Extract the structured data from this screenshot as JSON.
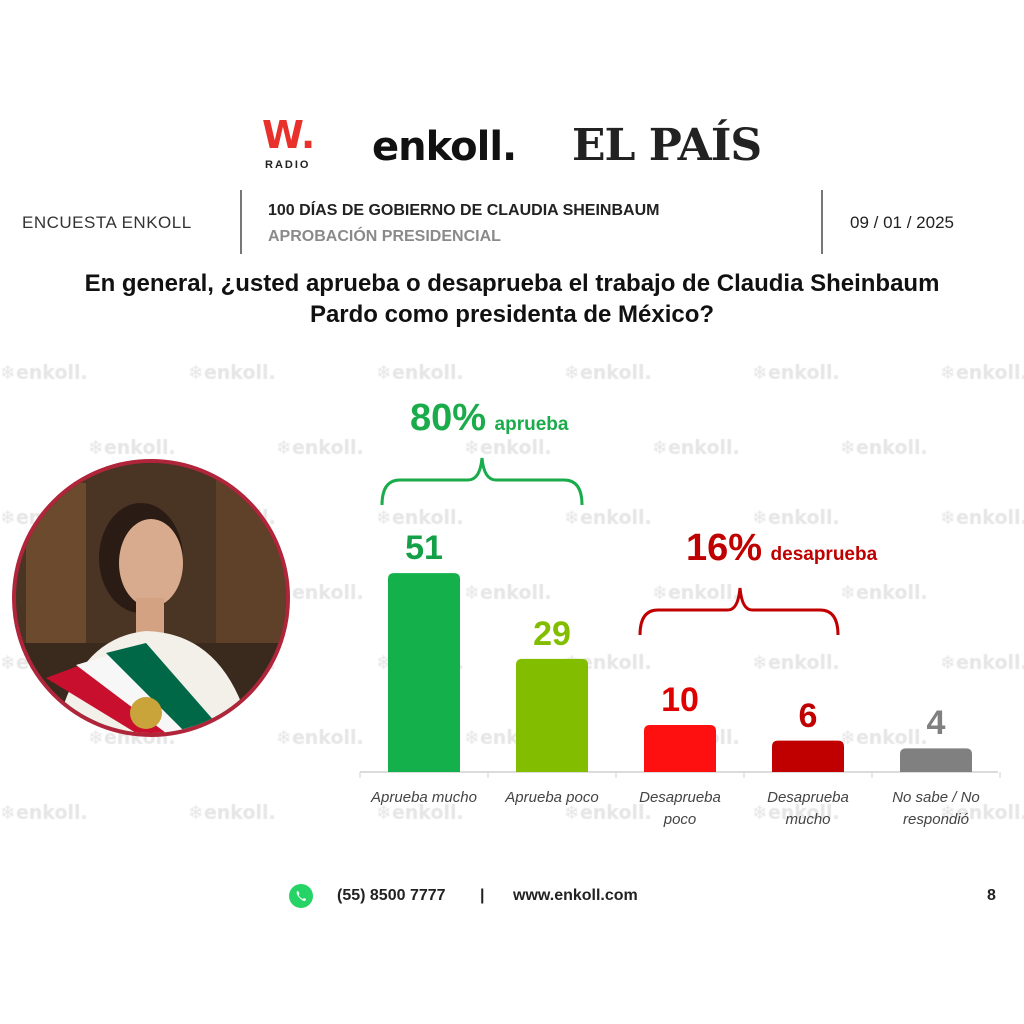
{
  "logos": {
    "wradio_main": "W.",
    "wradio_sub": "RADIO",
    "enkoll": "enkoll.",
    "elpais": "EL PAÍS",
    "watermark": "enkoll."
  },
  "header": {
    "left": "ENCUESTA ENKOLL",
    "title": "100 DÍAS DE GOBIERNO DE CLAUDIA SHEINBAUM",
    "subtitle": "APROBACIÓN PRESIDENCIAL",
    "date": "09 / 01 / 2025"
  },
  "question_line1": "En general, ¿usted aprueba o desaprueba el trabajo de Claudia Sheinbaum",
  "question_line2": "Pardo como presidenta de México?",
  "summaries": {
    "approve": {
      "value": "80%",
      "label": "aprueba",
      "color": "#1aab4b"
    },
    "disapprove": {
      "value": "16%",
      "label": "desaprueba",
      "color": "#c00000"
    }
  },
  "chart_data": {
    "type": "bar",
    "title": "",
    "categories": [
      "Aprueba mucho",
      "Aprueba poco",
      "Desaprueba poco",
      "Desaprueba mucho",
      "No sabe / No respondió"
    ],
    "category_lines": [
      [
        "Aprueba mucho"
      ],
      [
        "Aprueba poco"
      ],
      [
        "Desaprueba",
        "poco"
      ],
      [
        "Desaprueba",
        "mucho"
      ],
      [
        "No sabe / No",
        "respondió"
      ]
    ],
    "values": [
      51,
      29,
      10,
      6,
      4
    ],
    "colors": [
      "#13b04c",
      "#82bd00",
      "#ff1010",
      "#c00000",
      "#808080"
    ],
    "label_colors": [
      "#13a046",
      "#82bd00",
      "#e00000",
      "#c00000",
      "#808080"
    ],
    "ylim": [
      0,
      55
    ],
    "grid": false,
    "xlabel": "",
    "ylabel": ""
  },
  "footer": {
    "phone": "(55) 8500 7777",
    "separator": "|",
    "website": "www.enkoll.com",
    "page": "8"
  }
}
